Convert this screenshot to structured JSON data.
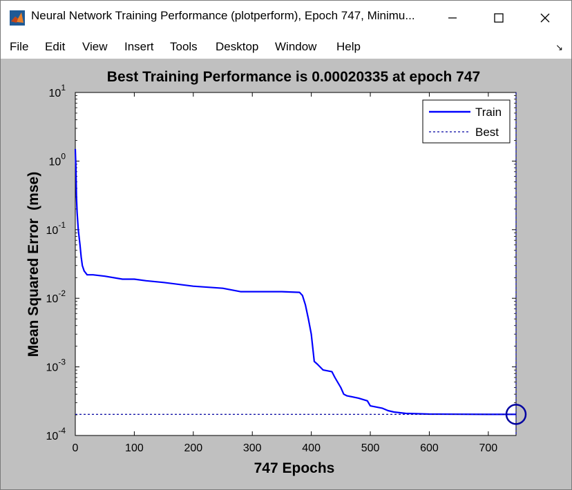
{
  "window": {
    "title": "Neural Network Training Performance (plotperform), Epoch 747, Minimu...",
    "icon": "matlab-icon",
    "controls": [
      "minimize-icon",
      "maximize-icon",
      "close-icon"
    ]
  },
  "menu": {
    "items": [
      "File",
      "Edit",
      "View",
      "Insert",
      "Tools",
      "Desktop",
      "Window",
      "Help"
    ],
    "dock_icon": "dock-arrow-icon"
  },
  "colors": {
    "figure_bg": "#c0c0c0",
    "axes_bg": "#ffffff",
    "train_line": "#0000ff",
    "best_line": "#0000a0",
    "best_marker": "#0000a0"
  },
  "chart_data": {
    "type": "line",
    "title": "Best Training Performance is 0.00020335 at epoch 747",
    "xlabel": "747 Epochs",
    "ylabel": "Mean Squared Error  (mse)",
    "y_scale": "log",
    "xlim": [
      0,
      747
    ],
    "ylim": [
      0.0001,
      10
    ],
    "xticks": [
      0,
      100,
      200,
      300,
      400,
      500,
      600,
      700
    ],
    "yticks": [
      {
        "base": "10",
        "exp": "1",
        "value": 10
      },
      {
        "base": "10",
        "exp": "0",
        "value": 1
      },
      {
        "base": "10",
        "exp": "-1",
        "value": 0.1
      },
      {
        "base": "10",
        "exp": "-2",
        "value": 0.01
      },
      {
        "base": "10",
        "exp": "-3",
        "value": 0.001
      },
      {
        "base": "10",
        "exp": "-4",
        "value": 0.0001
      }
    ],
    "grid": false,
    "legend_position": "top-right",
    "legend": [
      "Train",
      "Best"
    ],
    "series": [
      {
        "name": "Train",
        "style": "solid",
        "x": [
          0,
          1,
          2,
          3,
          5,
          8,
          10,
          12,
          15,
          20,
          30,
          50,
          80,
          100,
          120,
          150,
          200,
          250,
          280,
          300,
          350,
          380,
          385,
          390,
          395,
          400,
          405,
          410,
          420,
          435,
          440,
          450,
          455,
          460,
          480,
          495,
          500,
          520,
          530,
          540,
          560,
          600,
          650,
          700,
          747
        ],
        "y": [
          1.5,
          0.8,
          0.3,
          0.18,
          0.1,
          0.06,
          0.04,
          0.03,
          0.025,
          0.022,
          0.022,
          0.021,
          0.019,
          0.019,
          0.018,
          0.017,
          0.015,
          0.014,
          0.0125,
          0.0125,
          0.0125,
          0.0122,
          0.011,
          0.008,
          0.005,
          0.003,
          0.0012,
          0.0011,
          0.0009,
          0.00085,
          0.0007,
          0.0005,
          0.0004,
          0.00038,
          0.00035,
          0.00032,
          0.00027,
          0.00025,
          0.00023,
          0.00022,
          0.00021,
          0.000205,
          0.000204,
          0.000203,
          0.00020335
        ]
      },
      {
        "name": "Best",
        "style": "dashed",
        "x": [
          0,
          747
        ],
        "y": [
          0.00020335,
          0.00020335
        ]
      }
    ],
    "best_point": {
      "x": 747,
      "y": 0.00020335
    }
  }
}
